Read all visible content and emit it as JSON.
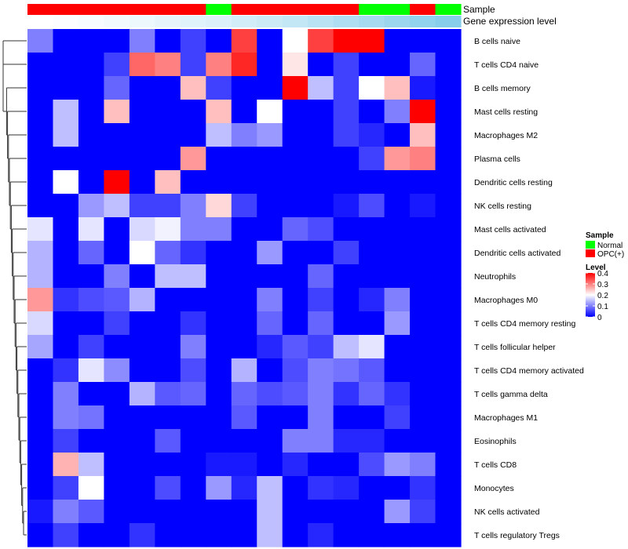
{
  "chart_data": {
    "type": "heatmap",
    "annotations": {
      "sample_label": "Sample",
      "level_label": "Gene expression level"
    },
    "columns": [
      {
        "sample": "OPC(+)",
        "level": 0.0
      },
      {
        "sample": "OPC(+)",
        "level": 0.02
      },
      {
        "sample": "OPC(+)",
        "level": 0.04
      },
      {
        "sample": "OPC(+)",
        "level": 0.06
      },
      {
        "sample": "OPC(+)",
        "level": 0.09
      },
      {
        "sample": "OPC(+)",
        "level": 0.12
      },
      {
        "sample": "OPC(+)",
        "level": 0.15
      },
      {
        "sample": "Normal",
        "level": 0.18
      },
      {
        "sample": "OPC(+)",
        "level": 0.22
      },
      {
        "sample": "OPC(+)",
        "level": 0.26
      },
      {
        "sample": "OPC(+)",
        "level": 0.3
      },
      {
        "sample": "OPC(+)",
        "level": 0.35
      },
      {
        "sample": "OPC(+)",
        "level": 0.4
      },
      {
        "sample": "Normal",
        "level": 0.45
      },
      {
        "sample": "Normal",
        "level": 0.5
      },
      {
        "sample": "OPC(+)",
        "level": 0.55
      },
      {
        "sample": "Normal",
        "level": 0.6
      }
    ],
    "rows": [
      {
        "label": "B cells naive",
        "values": [
          0.1,
          0,
          0,
          0,
          0.1,
          0,
          0.05,
          0,
          0.35,
          0,
          0.2,
          0.35,
          0.4,
          0.4,
          0,
          0,
          0
        ]
      },
      {
        "label": "T cells CD4 naive",
        "values": [
          0,
          0,
          0,
          0.05,
          0.32,
          0.3,
          0.05,
          0.3,
          0.37,
          0,
          0.22,
          0,
          0.05,
          0,
          0,
          0.08,
          0
        ]
      },
      {
        "label": "B cells memory",
        "values": [
          0,
          0,
          0,
          0.08,
          0,
          0,
          0.25,
          0.05,
          0,
          0,
          0.4,
          0.15,
          0.05,
          0.2,
          0.25,
          0.02,
          0
        ]
      },
      {
        "label": "Mast cells resting",
        "values": [
          0,
          0.15,
          0,
          0.25,
          0,
          0,
          0,
          0.25,
          0,
          0.2,
          0,
          0,
          0.05,
          0,
          0.1,
          0.4,
          0
        ]
      },
      {
        "label": "Macrophages M2",
        "values": [
          0,
          0.15,
          0,
          0,
          0,
          0,
          0,
          0.15,
          0.1,
          0.12,
          0,
          0,
          0.05,
          0.03,
          0,
          0.25,
          0
        ]
      },
      {
        "label": "Plasma cells",
        "values": [
          0,
          0,
          0,
          0,
          0,
          0,
          0.28,
          0,
          0,
          0,
          0,
          0,
          0,
          0.05,
          0.28,
          0.3,
          0
        ]
      },
      {
        "label": "Dendritic cells resting",
        "values": [
          0,
          0.2,
          0,
          0.4,
          0,
          0.25,
          0,
          0,
          0,
          0,
          0,
          0,
          0,
          0,
          0,
          0,
          0
        ]
      },
      {
        "label": "NK cells resting",
        "values": [
          0,
          0,
          0.12,
          0.15,
          0.05,
          0.05,
          0.1,
          0.23,
          0.05,
          0,
          0,
          0,
          0.02,
          0.06,
          0,
          0.02,
          0
        ]
      },
      {
        "label": "Mast cells activated",
        "values": [
          0.18,
          0,
          0.18,
          0,
          0.17,
          0.19,
          0.1,
          0.1,
          0,
          0,
          0.08,
          0.06,
          0,
          0,
          0,
          0,
          0
        ]
      },
      {
        "label": "Dendritic cells activated",
        "values": [
          0.14,
          0,
          0.08,
          0,
          0.2,
          0.08,
          0.04,
          0,
          0,
          0.12,
          0,
          0,
          0.05,
          0,
          0,
          0,
          0
        ]
      },
      {
        "label": "Neutrophils",
        "values": [
          0.14,
          0,
          0,
          0.1,
          0,
          0.15,
          0.15,
          0,
          0,
          0,
          0,
          0.08,
          0,
          0,
          0,
          0,
          0
        ]
      },
      {
        "label": "Macrophages M0",
        "values": [
          0.28,
          0.04,
          0.06,
          0.07,
          0.14,
          0,
          0,
          0,
          0,
          0.1,
          0,
          0.05,
          0,
          0.03,
          0.1,
          0,
          0
        ]
      },
      {
        "label": "T cells CD4 memory resting",
        "values": [
          0.17,
          0,
          0,
          0.05,
          0,
          0,
          0.04,
          0,
          0,
          0.08,
          0,
          0.08,
          0,
          0,
          0.12,
          0,
          0
        ]
      },
      {
        "label": "T cells follicular helper",
        "values": [
          0.13,
          0,
          0.05,
          0,
          0,
          0,
          0.1,
          0,
          0,
          0.03,
          0.07,
          0.05,
          0.15,
          0.18,
          0,
          0,
          0
        ]
      },
      {
        "label": "T cells CD4 memory activated",
        "values": [
          0,
          0.04,
          0.18,
          0.11,
          0,
          0,
          0.06,
          0,
          0.14,
          0,
          0.06,
          0.1,
          0.09,
          0.07,
          0,
          0,
          0
        ]
      },
      {
        "label": "T cells gamma delta",
        "values": [
          0,
          0.1,
          0,
          0,
          0.14,
          0.07,
          0.08,
          0,
          0.08,
          0.06,
          0.07,
          0.1,
          0.04,
          0.08,
          0.04,
          0,
          0
        ]
      },
      {
        "label": "Macrophages M1",
        "values": [
          0,
          0.1,
          0.09,
          0,
          0,
          0,
          0,
          0,
          0.07,
          0,
          0,
          0.1,
          0,
          0,
          0.05,
          0,
          0
        ]
      },
      {
        "label": "Eosinophils",
        "values": [
          0,
          0.05,
          0,
          0,
          0,
          0.07,
          0,
          0,
          0,
          0,
          0.1,
          0.1,
          0.03,
          0.03,
          0,
          0,
          0
        ]
      },
      {
        "label": "T cells CD8",
        "values": [
          0,
          0.26,
          0.15,
          0,
          0,
          0,
          0,
          0.02,
          0.02,
          0,
          0.03,
          0,
          0,
          0.06,
          0.12,
          0.1,
          0
        ]
      },
      {
        "label": "Monocytes",
        "values": [
          0,
          0.05,
          0.2,
          0,
          0,
          0.06,
          0,
          0.12,
          0.03,
          0.15,
          0,
          0.04,
          0.03,
          0,
          0,
          0.04,
          0
        ]
      },
      {
        "label": "NK cells activated",
        "values": [
          0.02,
          0.1,
          0.07,
          0,
          0,
          0,
          0,
          0,
          0,
          0.15,
          0,
          0,
          0,
          0,
          0.12,
          0.05,
          0
        ]
      },
      {
        "label": "T cells regulatory  Tregs",
        "values": [
          0,
          0.05,
          0,
          0,
          0.04,
          0,
          0,
          0,
          0,
          0.15,
          0,
          0.03,
          0,
          0,
          0,
          0,
          0
        ]
      }
    ],
    "legend": {
      "sample_title": "Sample",
      "sample_items": [
        {
          "name": "Normal",
          "color": "#00ff00"
        },
        {
          "name": "OPC(+)",
          "color": "#ff0000"
        }
      ],
      "level_title": "Level",
      "level_ticks": [
        "0.4",
        "0.3",
        "0.2",
        "0.1",
        "0"
      ],
      "level_tick_values": [
        0.4,
        0.3,
        0.2,
        0.1,
        0
      ],
      "range": [
        0,
        0.4
      ]
    },
    "colors": {
      "low": "#0000ff",
      "mid": "#ffffff",
      "high": "#ff0000",
      "level_low": "#ffffff",
      "level_high": "#87ceeb"
    }
  }
}
